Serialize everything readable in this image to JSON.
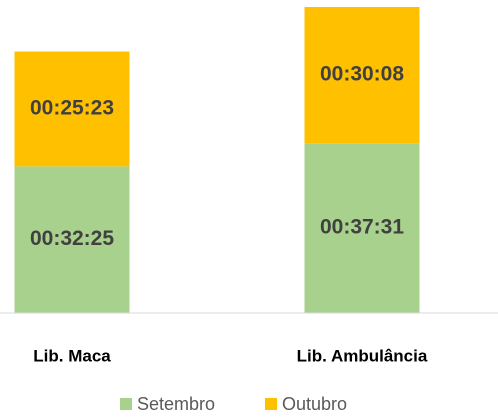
{
  "chart_data": {
    "type": "stacked_bar",
    "categories": [
      "Lib. Maca",
      "Lib. Ambulância"
    ],
    "series": [
      {
        "name": "Setembro",
        "color": "#a9d18e",
        "values": [
          1945,
          2251
        ],
        "value_labels": [
          "00:32:25",
          "00:37:31"
        ]
      },
      {
        "name": "Outubro",
        "color": "#ffc000",
        "values": [
          1523,
          1808
        ],
        "value_labels": [
          "00:25:23",
          "00:30:08"
        ]
      }
    ],
    "legend": "bottom"
  }
}
